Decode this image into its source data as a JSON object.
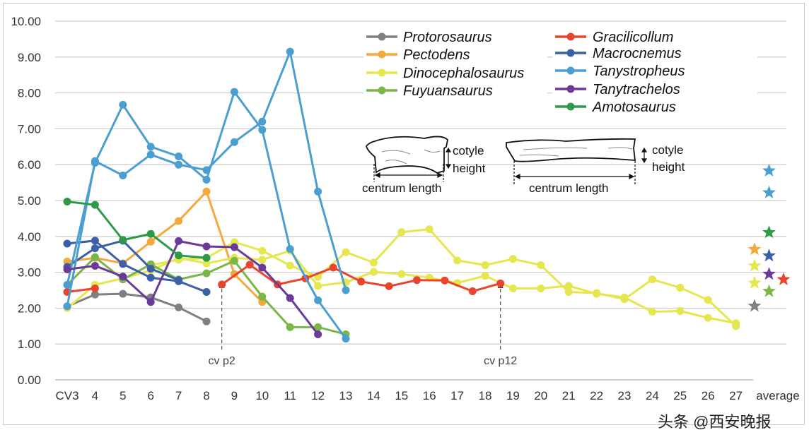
{
  "chart_data": {
    "type": "line",
    "title": "",
    "xlabel": "",
    "ylabel": "",
    "ylim": [
      0,
      10
    ],
    "yticks": [
      "0.00",
      "1.00",
      "2.00",
      "3.00",
      "4.00",
      "5.00",
      "6.00",
      "7.00",
      "8.00",
      "9.00",
      "10.00"
    ],
    "grid": true,
    "legend_placement": "top-center",
    "categories": [
      "CV3",
      "4",
      "5",
      "6",
      "7",
      "8",
      "9",
      "10",
      "11",
      "12",
      "13",
      "14",
      "15",
      "16",
      "17",
      "18",
      "19",
      "20",
      "21",
      "22",
      "23",
      "24",
      "25",
      "26",
      "27",
      "average"
    ],
    "series": [
      {
        "name": "Protorosaurus",
        "color": "#7f7f7f",
        "specimens": [
          [
            2.05,
            2.38,
            2.4,
            2.3,
            2.02,
            1.63
          ]
        ],
        "average": [
          2.06
        ]
      },
      {
        "name": "Pectodens",
        "color": "#f4a93c",
        "specimens": [
          [
            3.3,
            3.4,
            3.25,
            3.85,
            4.43,
            5.25,
            2.95,
            2.17
          ]
        ],
        "average": [
          3.64
        ]
      },
      {
        "name": "Dinocephalosaurus",
        "color": "#e6e64e",
        "specimens": [
          [
            2.0,
            2.65,
            2.83,
            3.05,
            3.4,
            3.25,
            3.4,
            3.35,
            3.6,
            2.62,
            2.72,
            3.01,
            2.95,
            2.85,
            2.7,
            2.9,
            2.55,
            2.55,
            2.62,
            2.4,
            2.3,
            1.9,
            1.92,
            1.73,
            1.58
          ],
          [
            null,
            null,
            null,
            3.2,
            3.35,
            3.4,
            3.84,
            3.6,
            3.19,
            2.87,
            3.56,
            3.27,
            4.12,
            4.2,
            3.33,
            3.2,
            3.37,
            3.2,
            2.45,
            2.42,
            2.25,
            2.8,
            2.57,
            2.23,
            1.5
          ]
        ],
        "average": [
          3.18,
          2.7
        ]
      },
      {
        "name": "Fuyuansaurus",
        "color": "#7ab648",
        "specimens": [
          [
            2.65,
            3.42,
            2.8,
            3.22,
            2.8,
            2.97,
            3.32,
            2.32,
            1.47,
            1.47,
            1.27
          ]
        ],
        "average": [
          2.47
        ]
      },
      {
        "name": "Gracilicollum",
        "color": "#e8442e",
        "specimens": [
          [
            2.45,
            2.55
          ]
        ],
        "offset_segment": {
          "x": [
            8.55,
            9.55,
            10.55,
            11.55,
            12.55,
            13.55,
            14.55,
            15.55,
            16.55,
            17.55,
            18.55
          ],
          "values": [
            2.66,
            3.21,
            2.66,
            2.83,
            3.13,
            2.74,
            2.61,
            2.78,
            2.77,
            2.47,
            2.69
          ]
        },
        "average": [
          2.8
        ]
      },
      {
        "name": "Macrocnemus",
        "color": "#3b60a8",
        "specimens": [
          [
            3.8,
            3.88,
            3.23,
            2.85,
            2.75,
            2.45
          ],
          [
            3.15,
            3.67,
            3.88,
            3.1,
            2.78
          ]
        ],
        "average": [
          3.46
        ]
      },
      {
        "name": "Tanystropheus",
        "color": "#4a9fd0",
        "specimens": [
          [
            2.65,
            6.05,
            7.67,
            6.5,
            6.23,
            5.58,
            8.03,
            6.97,
            3.65,
            2.22,
            1.15
          ],
          [
            2.05,
            6.1,
            5.7,
            6.28,
            6.0,
            5.85,
            6.63,
            7.2,
            9.15,
            5.25,
            2.5
          ]
        ],
        "average": [
          5.83,
          5.22
        ]
      },
      {
        "name": "Tanytrachelos",
        "color": "#6b3a98",
        "specimens": [
          [
            3.08,
            3.18,
            2.88,
            2.17,
            3.87,
            3.72,
            3.7,
            3.13,
            2.28,
            1.27
          ]
        ],
        "average": [
          2.95
        ]
      },
      {
        "name": "Amotosaurus",
        "color": "#2e9a48",
        "specimens": [
          [
            4.97,
            4.88,
            3.9,
            4.07,
            3.47,
            3.4
          ]
        ],
        "average": [
          4.11
        ]
      }
    ],
    "annotations": [
      {
        "text": "cv p2",
        "x": 8.55
      },
      {
        "text": "cv p12",
        "x": 18.55
      }
    ],
    "inset": {
      "left": {
        "cotyle": "cotyle",
        "height": "height",
        "length": "centrum length"
      },
      "right": {
        "cotyle": "cotyle",
        "height": "height",
        "length": "centrum length"
      }
    }
  },
  "watermark": "头条 @西安晚报"
}
